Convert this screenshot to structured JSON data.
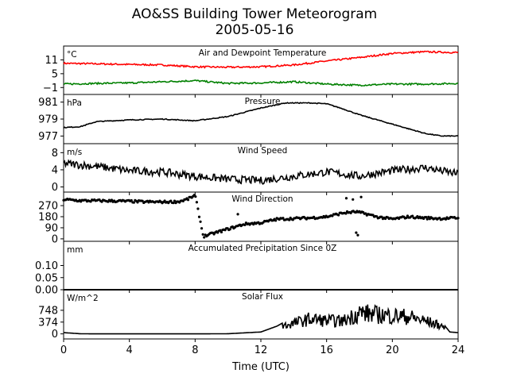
{
  "title": "AO&SS Building Tower Meteorogram",
  "subtitle": "2005-05-16",
  "xlabel": "Time (UTC)",
  "x_ticks": [
    "0",
    "4",
    "8",
    "12",
    "16",
    "20",
    "24"
  ],
  "chart_data": [
    {
      "type": "line",
      "panel": "temperature",
      "label": "Air and Dewpoint Temperature",
      "unit": "°C",
      "ylim": [
        -4,
        17
      ],
      "yticks": [
        {
          "v": 11,
          "label": "11"
        },
        {
          "v": 5,
          "label": "5"
        },
        {
          "v": -1,
          "label": "−1"
        }
      ],
      "x": [
        0,
        2,
        4,
        6,
        8,
        10,
        12,
        14,
        16,
        18,
        20,
        22,
        24
      ],
      "series": [
        {
          "color": "#ff0000",
          "values": [
            9.5,
            9.3,
            9.0,
            8.8,
            8.0,
            7.8,
            8.0,
            8.8,
            10.5,
            12.0,
            13.8,
            14.5,
            14.2
          ]
        },
        {
          "color": "#008000",
          "values": [
            0.5,
            0.8,
            1.0,
            1.5,
            2.0,
            0.8,
            1.0,
            1.5,
            0.5,
            0.0,
            0.5,
            0.5,
            0.8
          ]
        }
      ]
    },
    {
      "type": "line",
      "panel": "pressure",
      "label": "Pressure",
      "unit": "hPa",
      "ylim": [
        976.1,
        981.9
      ],
      "yticks": [
        {
          "v": 981,
          "label": "981"
        },
        {
          "v": 979,
          "label": "979"
        },
        {
          "v": 977,
          "label": "977"
        }
      ],
      "x": [
        0,
        1,
        2,
        4,
        6,
        8,
        10,
        12,
        13.5,
        15,
        16,
        17,
        18,
        20,
        22,
        23,
        24
      ],
      "series": [
        {
          "color": "#000000",
          "values": [
            978.0,
            978.1,
            978.7,
            978.9,
            979.0,
            978.8,
            979.3,
            980.3,
            980.9,
            980.9,
            980.8,
            980.2,
            979.5,
            978.4,
            977.3,
            977.0,
            977.0
          ]
        }
      ]
    },
    {
      "type": "line",
      "panel": "wind_speed",
      "label": "Wind Speed",
      "unit": "m/s",
      "ylim": [
        -1.2,
        10.1
      ],
      "yticks": [
        {
          "v": 8,
          "label": "8"
        },
        {
          "v": 4,
          "label": "4"
        },
        {
          "v": 0,
          "label": "0"
        }
      ],
      "x": [
        0,
        2,
        4,
        6,
        8,
        10,
        12,
        14,
        16,
        18,
        20,
        22,
        24
      ],
      "series": [
        {
          "color": "#000000",
          "values": [
            5.5,
            4.8,
            3.8,
            3.5,
            2.5,
            1.8,
            1.5,
            2.5,
            3.5,
            2.5,
            3.8,
            4.5,
            3.0
          ]
        }
      ]
    },
    {
      "type": "scatter",
      "panel": "wind_direction",
      "label": "Wind Direction",
      "unit": "",
      "ylim": [
        -20,
        380
      ],
      "yticks": [
        {
          "v": 270,
          "label": "270"
        },
        {
          "v": 180,
          "label": "180"
        },
        {
          "v": 90,
          "label": "90"
        },
        {
          "v": 0,
          "label": "0"
        }
      ],
      "x": [
        0,
        1,
        2,
        3,
        4,
        5,
        6,
        7,
        7.6,
        8,
        8.5,
        9,
        10,
        11,
        12,
        13,
        14,
        15,
        16,
        17,
        17.8,
        18.5,
        19,
        20,
        21,
        22,
        23,
        24
      ],
      "series": [
        {
          "color": "#000000",
          "values": [
            320,
            310,
            310,
            308,
            305,
            300,
            300,
            302,
            325,
            355,
            20,
            40,
            80,
            120,
            130,
            160,
            165,
            170,
            180,
            210,
            220,
            200,
            180,
            160,
            180,
            170,
            165,
            170
          ]
        }
      ],
      "outliers": [
        [
          10.6,
          200
        ],
        [
          17.2,
          330
        ],
        [
          17.6,
          320
        ],
        [
          17.8,
          50
        ],
        [
          17.9,
          30
        ],
        [
          18.1,
          340
        ]
      ]
    },
    {
      "type": "line",
      "panel": "precipitation",
      "label": "Accumulated Precipitation Since 0Z",
      "unit": "mm",
      "ylim": [
        0,
        0.2
      ],
      "yticks": [
        {
          "v": 0.1,
          "label": "0.10"
        },
        {
          "v": 0.05,
          "label": "0.05"
        },
        {
          "v": 0.0,
          "label": "0.00"
        }
      ],
      "x": [
        0,
        24
      ],
      "series": [
        {
          "color": "#000000",
          "values": [
            0,
            0
          ]
        }
      ]
    },
    {
      "type": "line",
      "panel": "solar_flux",
      "label": "Solar Flux",
      "unit": "W/m^2",
      "ylim": [
        -160,
        1400
      ],
      "yticks": [
        {
          "v": 748,
          "label": "748"
        },
        {
          "v": 374,
          "label": "374"
        },
        {
          "v": 0,
          "label": "0"
        }
      ],
      "x": [
        0,
        1,
        2,
        4,
        6,
        8,
        10,
        12,
        13,
        13.5,
        14,
        15,
        16,
        17,
        18,
        19,
        20,
        21,
        22,
        23,
        23.5,
        24
      ],
      "series": [
        {
          "color": "#000000",
          "values": [
            40,
            5,
            0,
            0,
            0,
            0,
            5,
            60,
            250,
            400,
            500,
            700,
            620,
            600,
            1000,
            900,
            850,
            800,
            600,
            380,
            60,
            40
          ]
        }
      ]
    }
  ]
}
